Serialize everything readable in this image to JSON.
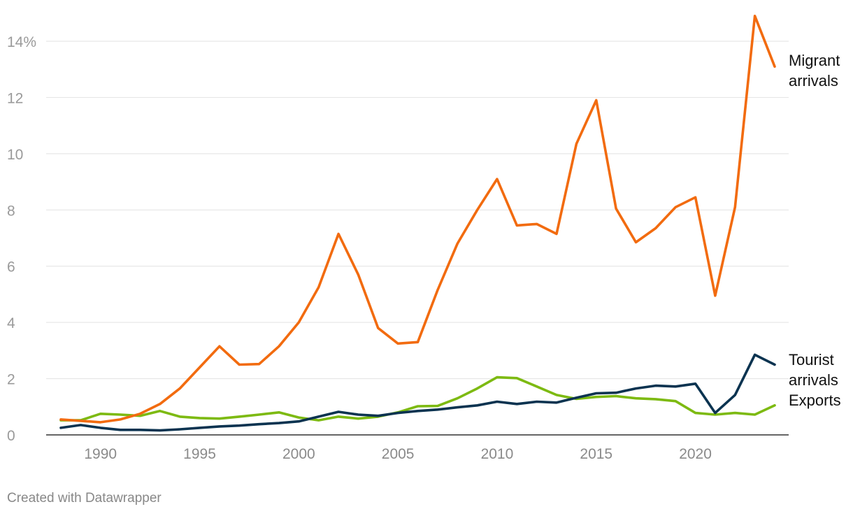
{
  "chart_data": {
    "type": "line",
    "title": "",
    "xlabel": "",
    "ylabel": "",
    "xlim": [
      1988,
      2024
    ],
    "ylim": [
      0,
      14
    ],
    "y_ticks": [
      0,
      2,
      4,
      6,
      8,
      10,
      12,
      14
    ],
    "y_tick_labels": [
      "0",
      "2",
      "4",
      "6",
      "8",
      "10",
      "12",
      "14%"
    ],
    "x_ticks": [
      1990,
      1995,
      2000,
      2005,
      2010,
      2015,
      2020
    ],
    "x_tick_labels": [
      "1990",
      "1995",
      "2000",
      "2005",
      "2010",
      "2015",
      "2020"
    ],
    "grid": "horizontal",
    "legend": "inline labels at line ends",
    "x": [
      1988,
      1989,
      1990,
      1991,
      1992,
      1993,
      1994,
      1995,
      1996,
      1997,
      1998,
      1999,
      2000,
      2001,
      2002,
      2003,
      2004,
      2005,
      2006,
      2007,
      2008,
      2009,
      2010,
      2011,
      2012,
      2013,
      2014,
      2015,
      2016,
      2017,
      2018,
      2019,
      2020,
      2021,
      2022,
      2023,
      2024
    ],
    "series": [
      {
        "name": "Migrant arrivals",
        "label_lines": [
          "Migrant",
          "arrivals"
        ],
        "color": "#f26b0f",
        "values": [
          0.55,
          0.5,
          0.45,
          0.55,
          0.75,
          1.1,
          1.65,
          2.4,
          3.15,
          2.5,
          2.52,
          3.15,
          4.0,
          5.25,
          7.15,
          5.7,
          3.8,
          3.25,
          3.3,
          5.15,
          6.8,
          8.0,
          9.1,
          7.45,
          7.5,
          7.15,
          10.35,
          11.9,
          8.05,
          6.85,
          7.35,
          8.1,
          8.45,
          4.95,
          8.1,
          14.9,
          13.1
        ]
      },
      {
        "name": "Tourist arrivals",
        "label_lines": [
          "Tourist",
          "arrivals"
        ],
        "color": "#0b3350",
        "values": [
          0.25,
          0.35,
          0.25,
          0.18,
          0.18,
          0.16,
          0.2,
          0.25,
          0.3,
          0.33,
          0.38,
          0.42,
          0.48,
          0.65,
          0.82,
          0.72,
          0.68,
          0.78,
          0.85,
          0.9,
          0.98,
          1.05,
          1.18,
          1.1,
          1.18,
          1.15,
          1.32,
          1.48,
          1.5,
          1.65,
          1.75,
          1.72,
          1.82,
          0.78,
          1.42,
          2.85,
          2.5
        ]
      },
      {
        "name": "Exports",
        "label_lines": [
          "Exports"
        ],
        "color": "#7dba12",
        "values": [
          0.52,
          0.52,
          0.75,
          0.72,
          0.68,
          0.85,
          0.65,
          0.6,
          0.58,
          0.65,
          0.72,
          0.8,
          0.62,
          0.52,
          0.65,
          0.58,
          0.65,
          0.8,
          1.02,
          1.03,
          1.3,
          1.65,
          2.05,
          2.02,
          1.72,
          1.42,
          1.28,
          1.35,
          1.38,
          1.3,
          1.27,
          1.2,
          0.78,
          0.72,
          0.78,
          0.72,
          1.05
        ]
      }
    ]
  },
  "footer": {
    "credit": "Created with Datawrapper"
  }
}
